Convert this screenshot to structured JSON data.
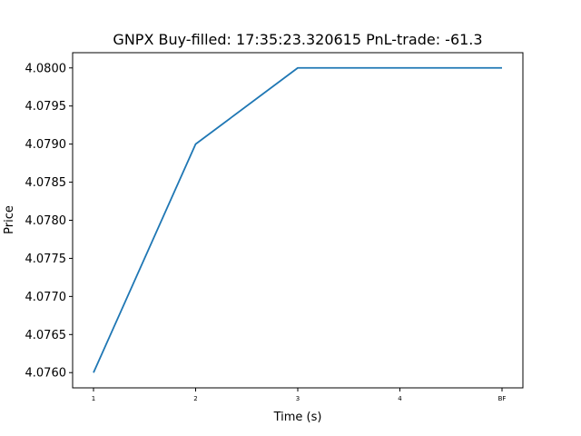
{
  "chart_data": {
    "type": "line",
    "title": "GNPX  Buy-filled:  17:35:23.320615  PnL-trade:  -61.3",
    "xlabel": "Time (s)",
    "ylabel": "Price",
    "categories": [
      "1",
      "2",
      "3",
      "4",
      "BF"
    ],
    "series": [
      {
        "values": [
          4.076,
          4.079,
          4.08,
          4.08,
          4.08
        ],
        "color": "#1f77b4"
      }
    ],
    "ylim": [
      4.0758,
      4.0802
    ],
    "yticks": [
      "4.0760",
      "4.0765",
      "4.0770",
      "4.0775",
      "4.0780",
      "4.0785",
      "4.0790",
      "4.0795",
      "4.0800"
    ],
    "grid": false,
    "legend": "none"
  }
}
